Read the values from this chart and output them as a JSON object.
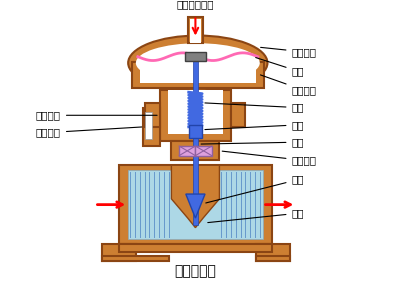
{
  "title": "气动薄膜阀",
  "bg_color": "#ffffff",
  "body_color": "#CD7F32",
  "body_edge": "#8B4513",
  "diaphragm_color": "#FF69B4",
  "spring_color": "#4169E1",
  "rod_color": "#4169E1",
  "valve_stem_color": "#4169E1",
  "packing_color": "#DDA0DD",
  "plug_color": "#4169E1",
  "flow_color": "#ADD8E6",
  "arrow_color": "#FF0000",
  "line_color": "#000000",
  "labels": {
    "pressure_inlet": "压力信号入口",
    "upper_chamber": "膜室上腔",
    "diaphragm": "膜片",
    "lower_chamber": "膜室下腔",
    "spring": "弹簧",
    "push_rod": "推杆",
    "valve_stem": "阀杆",
    "packing": "密封填料",
    "plug": "阀芯",
    "seat": "阀座",
    "travel_indicator": "行程指针",
    "travel_scale": "行程刻度"
  }
}
